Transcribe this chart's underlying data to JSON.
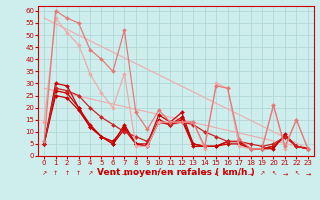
{
  "xlabel": "Vent moyen/en rafales ( km/h )",
  "xlim": [
    -0.5,
    23.5
  ],
  "ylim": [
    0,
    62
  ],
  "yticks": [
    0,
    5,
    10,
    15,
    20,
    25,
    30,
    35,
    40,
    45,
    50,
    55,
    60
  ],
  "xticks": [
    0,
    1,
    2,
    3,
    4,
    5,
    6,
    7,
    8,
    9,
    10,
    11,
    12,
    13,
    14,
    15,
    16,
    17,
    18,
    19,
    20,
    21,
    22,
    23
  ],
  "bg_color": "#ceeeed",
  "grid_color": "#add4d4",
  "series": [
    {
      "x": [
        0,
        1,
        2,
        3,
        4,
        5,
        6,
        7,
        8,
        9,
        10,
        11,
        12,
        13,
        14,
        15,
        16,
        17,
        18,
        19,
        20,
        21,
        22,
        23
      ],
      "y": [
        5,
        30,
        29,
        20,
        12,
        8,
        5,
        13,
        5,
        5,
        17,
        14,
        18,
        5,
        4,
        4,
        6,
        6,
        3,
        3,
        3,
        9,
        4,
        3
      ],
      "color": "#cc0000",
      "lw": 0.9
    },
    {
      "x": [
        0,
        1,
        2,
        3,
        4,
        5,
        6,
        7,
        8,
        9,
        10,
        11,
        12,
        13,
        14,
        15,
        16,
        17,
        18,
        19,
        20,
        21,
        22,
        23
      ],
      "y": [
        5,
        27,
        26,
        20,
        13,
        8,
        6,
        12,
        5,
        4,
        15,
        13,
        16,
        5,
        4,
        4,
        6,
        6,
        3,
        3,
        4,
        8,
        4,
        3
      ],
      "color": "#cc0000",
      "lw": 0.9
    },
    {
      "x": [
        0,
        1,
        2,
        3,
        4,
        5,
        6,
        7,
        8,
        9,
        10,
        11,
        12,
        13,
        14,
        15,
        16,
        17,
        18,
        19,
        20,
        21,
        22,
        23
      ],
      "y": [
        5,
        25,
        24,
        19,
        12,
        8,
        5,
        11,
        5,
        4,
        14,
        13,
        15,
        4,
        4,
        4,
        5,
        5,
        3,
        3,
        4,
        8,
        4,
        3
      ],
      "color": "#cc0000",
      "lw": 0.9
    },
    {
      "x": [
        0,
        1,
        2,
        3,
        4,
        5,
        6,
        7,
        8,
        9,
        10,
        11,
        12,
        13,
        14,
        15,
        16,
        17,
        18,
        19,
        20,
        21,
        22,
        23
      ],
      "y": [
        5,
        28,
        27,
        25,
        20,
        16,
        13,
        10,
        8,
        6,
        14,
        13,
        14,
        13,
        10,
        8,
        6,
        6,
        5,
        4,
        5,
        8,
        4,
        3
      ],
      "color": "#cc2222",
      "lw": 0.9
    },
    {
      "x": [
        0,
        1,
        2,
        3,
        4,
        5,
        6,
        7,
        8,
        9,
        10,
        11,
        12,
        13,
        14,
        15,
        16,
        17,
        18,
        19,
        20,
        21,
        22,
        23
      ],
      "y": [
        14,
        57,
        51,
        46,
        34,
        26,
        20,
        34,
        4,
        4,
        14,
        14,
        14,
        14,
        3,
        30,
        28,
        4,
        3,
        3,
        21,
        3,
        15,
        3
      ],
      "color": "#f0aaaa",
      "lw": 0.9
    },
    {
      "x": [
        0,
        1,
        2,
        3,
        4,
        5,
        6,
        7,
        8,
        9,
        10,
        11,
        12,
        13,
        14,
        15,
        16,
        17,
        18,
        19,
        20,
        21,
        22,
        23
      ],
      "y": [
        6,
        60,
        57,
        55,
        44,
        40,
        35,
        52,
        18,
        11,
        19,
        14,
        14,
        14,
        4,
        29,
        28,
        7,
        3,
        3,
        21,
        4,
        15,
        3
      ],
      "color": "#e87878",
      "lw": 0.9
    },
    {
      "x": [
        0,
        23
      ],
      "y": [
        28,
        3
      ],
      "color": "#f0aaaa",
      "lw": 0.8
    },
    {
      "x": [
        0,
        23
      ],
      "y": [
        57,
        3
      ],
      "color": "#f0aaaa",
      "lw": 0.8
    }
  ],
  "marker": "D",
  "marker_size": 2.0,
  "tick_fontsize": 5.0,
  "xlabel_fontsize": 6.5,
  "arrow_chars": [
    "↗",
    "↑",
    "↑",
    "↑",
    "↗",
    "↑",
    "↗",
    "→",
    "↙",
    "↓",
    "↑",
    "↖",
    "↖",
    "↙",
    "↙",
    "↙",
    "↓",
    "↓",
    "→",
    "↗",
    "↖",
    "→",
    "↖",
    "→"
  ]
}
